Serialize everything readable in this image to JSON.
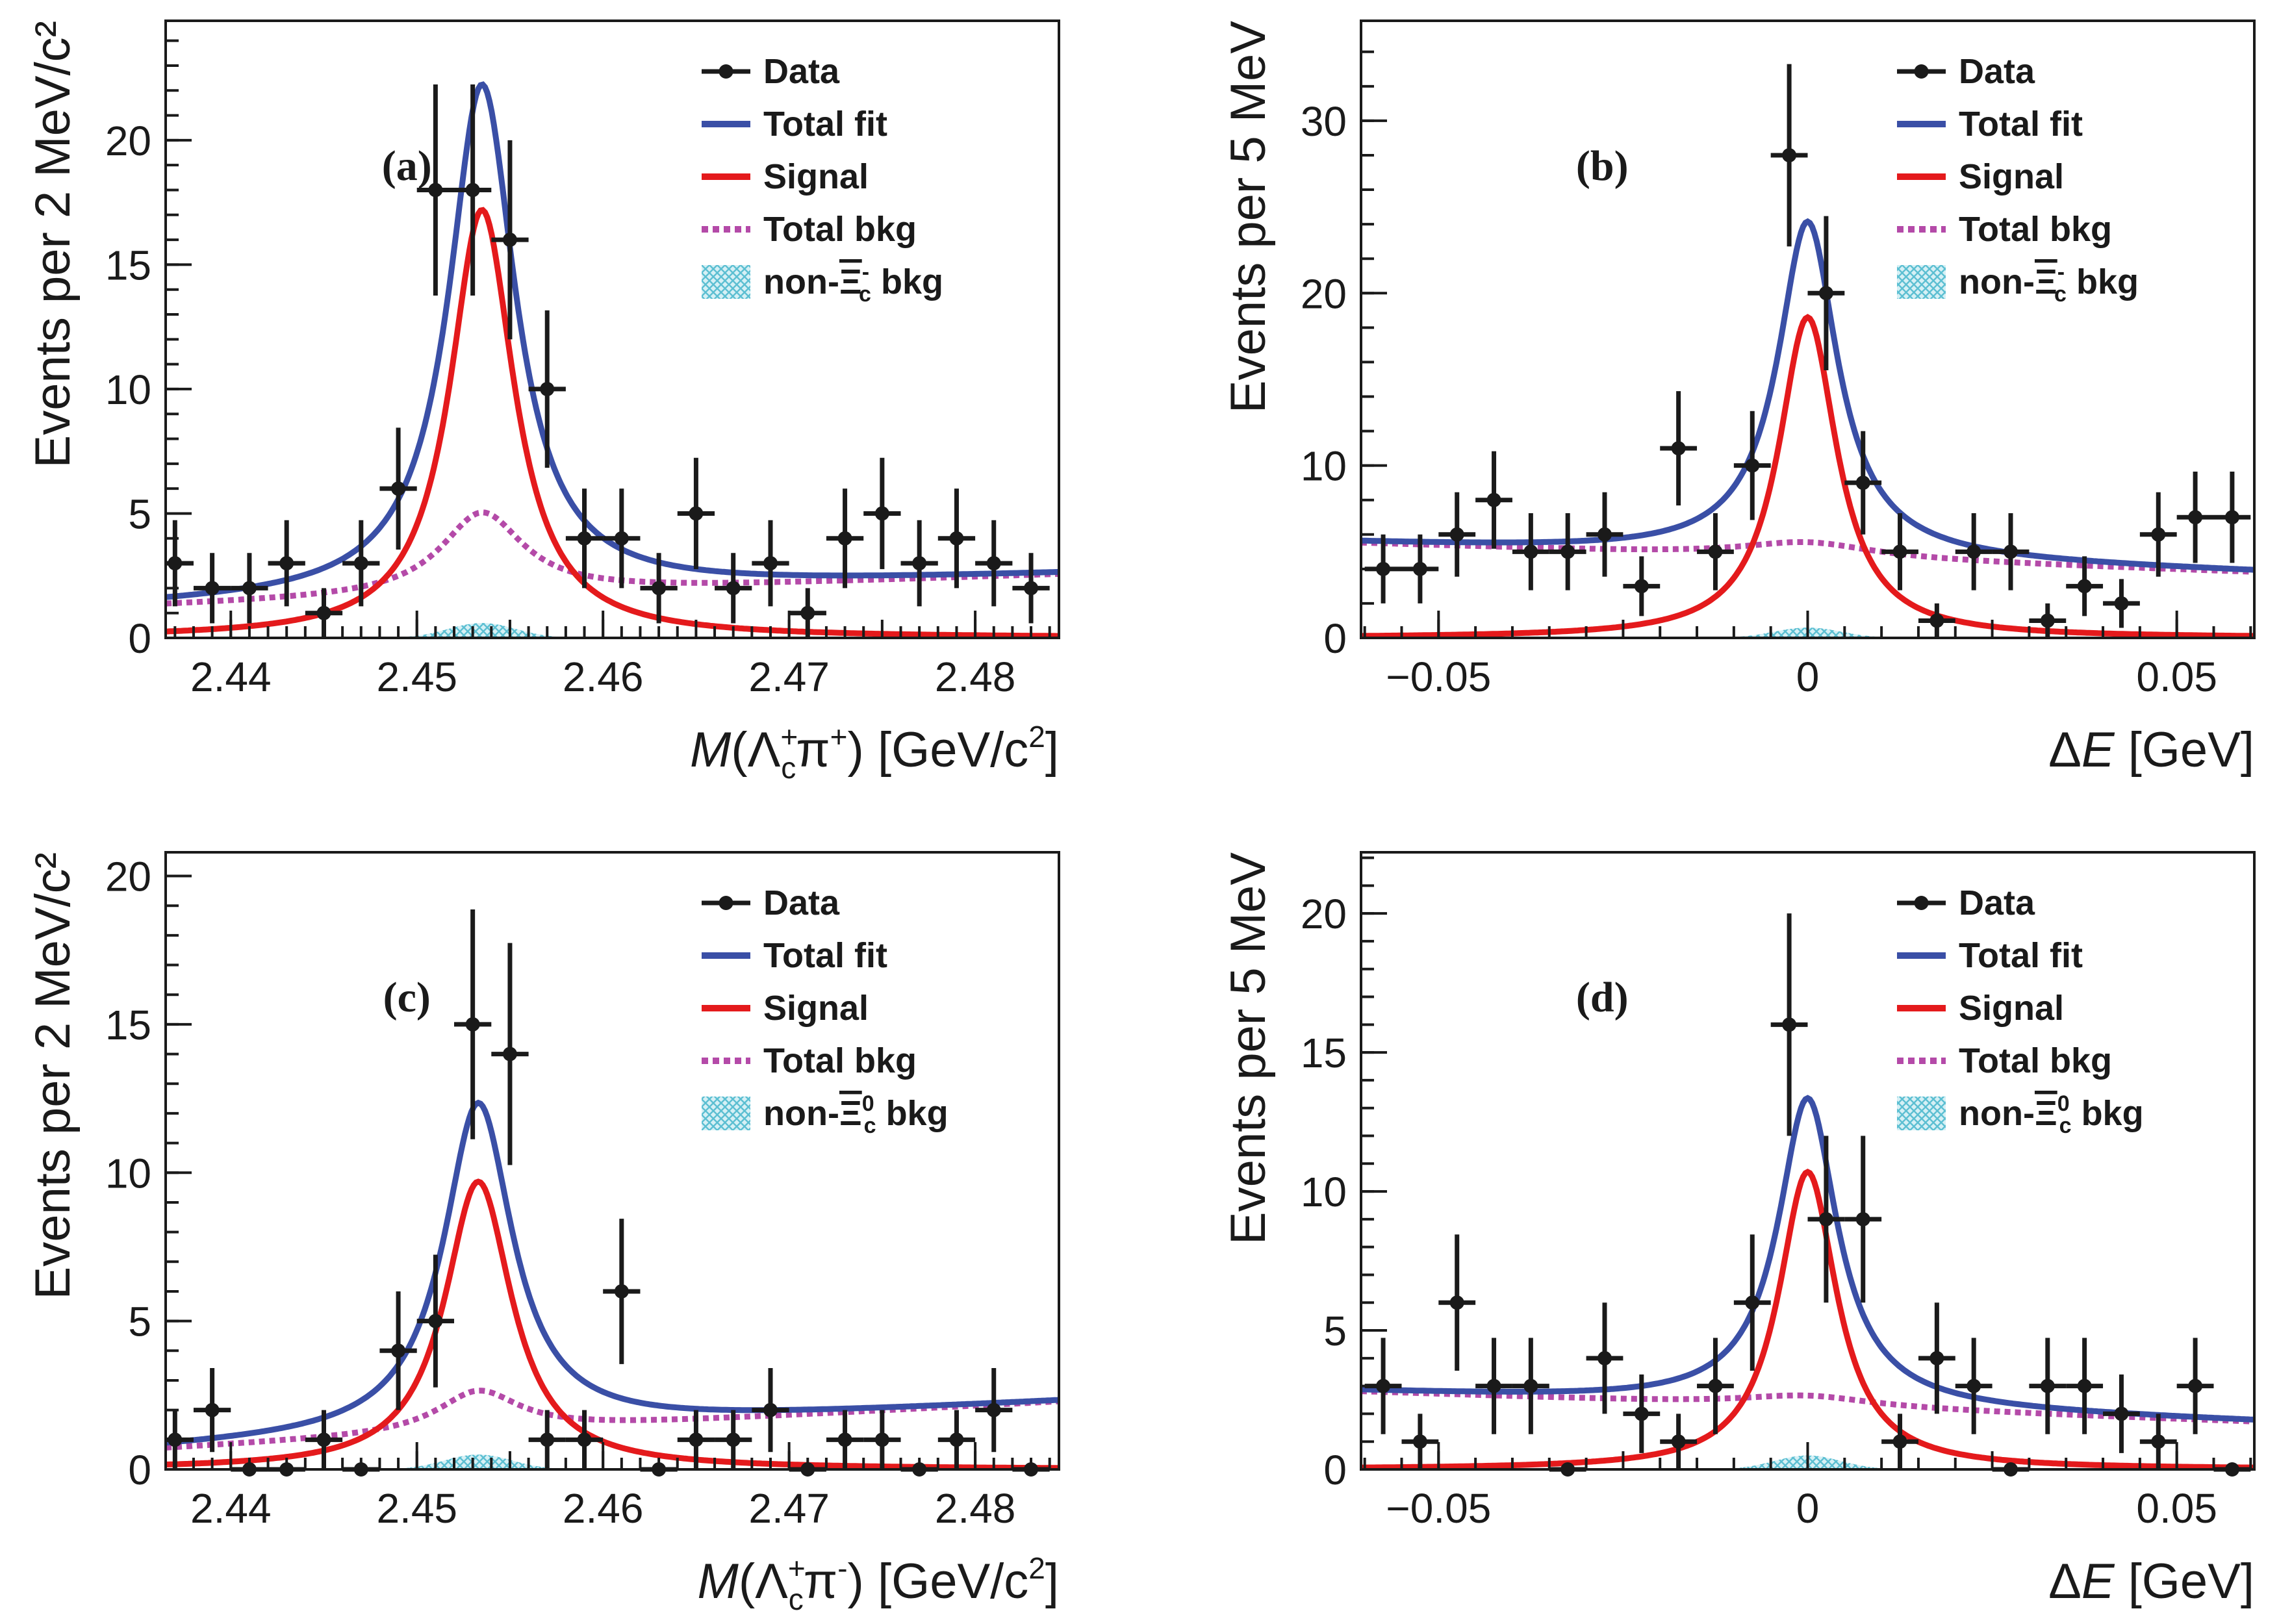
{
  "colors": {
    "data": "#1a1a1a",
    "total_fit": "#3a4fa6",
    "signal": "#e41a1c",
    "total_bkg": "#b44aa8",
    "non_xic_bkg": "#6cc8d8"
  },
  "chart_data": [
    {
      "type": "line",
      "panel_tag": "(a)",
      "xlabel": {
        "var": "M",
        "particles": "Λ",
        "sub": "c",
        "sup": "+",
        "pion": "π",
        "pion_sup": "+",
        "unit": " [GeV/c",
        "unit_sup": "2",
        "unit_close": "]"
      },
      "ylabel": "Events per 2 MeV/c²",
      "xlim": [
        2.4365,
        2.4845
      ],
      "ylim": [
        0,
        24.8
      ],
      "xticks": [
        2.44,
        2.45,
        2.46,
        2.47,
        2.48
      ],
      "xtick_labels": [
        "2.44",
        "2.45",
        "2.46",
        "2.47",
        "2.48"
      ],
      "yticks": [
        0,
        5,
        10,
        15,
        20
      ],
      "ytick_labels": [
        "0",
        "5",
        "10",
        "15",
        "20"
      ],
      "legend_position": "top-right",
      "legend": [
        "Data",
        "Total fit",
        "Signal",
        "Total bkg",
        "non-Ξc⁻ bkg"
      ],
      "legend_special": {
        "prefix": "non-",
        "base": "Ξ",
        "sub": "c",
        "sup": "-",
        "suffix": " bkg"
      },
      "grid": false,
      "data_points": {
        "x": [
          2.437,
          2.439,
          2.441,
          2.443,
          2.445,
          2.447,
          2.449,
          2.451,
          2.453,
          2.455,
          2.457,
          2.459,
          2.461,
          2.463,
          2.465,
          2.467,
          2.469,
          2.471,
          2.473,
          2.475,
          2.477,
          2.479,
          2.481,
          2.483
        ],
        "y": [
          3,
          2,
          2,
          3,
          1,
          3,
          6,
          18,
          18,
          16,
          10,
          4,
          4,
          2,
          5,
          2,
          3,
          1,
          4,
          5,
          3,
          4,
          3,
          2
        ],
        "xerr": 0.001
      },
      "curves": {
        "peak_mass": 2.4535,
        "signal": {
          "amplitude": 17.2,
          "width": 0.0021
        },
        "bkg_linear": {
          "at_start": 1.3,
          "slope": 26
        },
        "bkg_peak": {
          "amplitude": 3.3,
          "width": 0.0027
        },
        "non_xic_bkg": {
          "amplitude": 0.6,
          "width": 0.0018
        }
      }
    },
    {
      "type": "line",
      "panel_tag": "(b)",
      "xlabel": {
        "var": "ΔE",
        "unit": " [GeV]"
      },
      "ylabel": "Events per 5 MeV",
      "xlim": [
        -0.0605,
        0.0605
      ],
      "ylim": [
        0,
        35.8
      ],
      "xticks": [
        -0.05,
        0,
        0.05
      ],
      "xtick_labels": [
        "−0.05",
        "0",
        "0.05"
      ],
      "yticks": [
        0,
        10,
        20,
        30
      ],
      "ytick_labels": [
        "0",
        "10",
        "20",
        "30"
      ],
      "legend_position": "top-right",
      "legend": [
        "Data",
        "Total fit",
        "Signal",
        "Total bkg",
        "non-Ξc⁻ bkg"
      ],
      "legend_special": {
        "prefix": "non-",
        "base": "Ξ",
        "sub": "c",
        "sup": "-",
        "suffix": " bkg"
      },
      "grid": false,
      "data_points": {
        "x": [
          -0.0575,
          -0.0525,
          -0.0475,
          -0.0425,
          -0.0375,
          -0.0325,
          -0.0275,
          -0.0225,
          -0.0175,
          -0.0125,
          -0.0075,
          -0.0025,
          0.0025,
          0.0075,
          0.0125,
          0.0175,
          0.0225,
          0.0275,
          0.0325,
          0.0375,
          0.0425,
          0.0475,
          0.0525,
          0.0575
        ],
        "y": [
          4,
          4,
          6,
          8,
          5,
          5,
          6,
          3,
          11,
          5,
          10,
          28,
          20,
          9,
          5,
          1,
          5,
          5,
          1,
          3,
          2,
          6,
          7,
          7
        ],
        "xerr": 0.0025
      },
      "curves": {
        "peak_mass": 0,
        "signal": {
          "amplitude": 18.6,
          "width": 0.0048
        },
        "bkg_linear": {
          "at_start": 5.5,
          "slope": -14
        },
        "bkg_peak": {
          "amplitude": 0.9,
          "width": 0.011
        },
        "non_xic_bkg": {
          "amplitude": 0.6,
          "width": 0.0045
        }
      }
    },
    {
      "type": "line",
      "panel_tag": "(c)",
      "xlabel": {
        "var": "M",
        "particles": "Λ",
        "sub": "c",
        "sup": "+",
        "pion": "π",
        "pion_sup": "-",
        "unit": " [GeV/c",
        "unit_sup": "2",
        "unit_close": "]"
      },
      "ylabel": "Events per 2 MeV/c²",
      "xlim": [
        2.4365,
        2.4845
      ],
      "ylim": [
        0,
        20.8
      ],
      "xticks": [
        2.44,
        2.45,
        2.46,
        2.47,
        2.48
      ],
      "xtick_labels": [
        "2.44",
        "2.45",
        "2.46",
        "2.47",
        "2.48"
      ],
      "yticks": [
        0,
        5,
        10,
        15,
        20
      ],
      "ytick_labels": [
        "0",
        "5",
        "10",
        "15",
        "20"
      ],
      "legend_position": "top-right",
      "legend": [
        "Data",
        "Total fit",
        "Signal",
        "Total bkg",
        "non-Ξc⁰ bkg"
      ],
      "legend_special": {
        "prefix": "non-",
        "base": "Ξ",
        "sub": "c",
        "sup": "0",
        "suffix": " bkg"
      },
      "grid": false,
      "data_points": {
        "x": [
          2.437,
          2.439,
          2.441,
          2.443,
          2.445,
          2.447,
          2.449,
          2.451,
          2.453,
          2.455,
          2.457,
          2.459,
          2.461,
          2.463,
          2.465,
          2.467,
          2.469,
          2.471,
          2.473,
          2.475,
          2.477,
          2.479,
          2.481,
          2.483
        ],
        "y": [
          1,
          2,
          0,
          0,
          1,
          0,
          4,
          5,
          15,
          14,
          1,
          1,
          6,
          0,
          1,
          1,
          2,
          0,
          1,
          1,
          0,
          1,
          2,
          0
        ],
        "xerr": 0.001
      },
      "curves": {
        "peak_mass": 2.4533,
        "signal": {
          "amplitude": 9.7,
          "width": 0.0022
        },
        "bkg_linear": {
          "at_start": 0.7,
          "slope": 33
        },
        "bkg_peak": {
          "amplitude": 1.4,
          "width": 0.0027
        },
        "non_xic_bkg": {
          "amplitude": 0.5,
          "width": 0.0018
        }
      }
    },
    {
      "type": "line",
      "panel_tag": "(d)",
      "xlabel": {
        "var": "ΔE",
        "unit": " [GeV]"
      },
      "ylabel": "Events per 5 MeV",
      "xlim": [
        -0.0605,
        0.0605
      ],
      "ylim": [
        0,
        22.2
      ],
      "xticks": [
        -0.05,
        0,
        0.05
      ],
      "xtick_labels": [
        "−0.05",
        "0",
        "0.05"
      ],
      "yticks": [
        0,
        5,
        10,
        15,
        20
      ],
      "ytick_labels": [
        "0",
        "5",
        "10",
        "15",
        "20"
      ],
      "legend_position": "top-right",
      "legend": [
        "Data",
        "Total fit",
        "Signal",
        "Total bkg",
        "non-Ξc⁰ bkg"
      ],
      "legend_special": {
        "prefix": "non-",
        "base": "Ξ",
        "sub": "c",
        "sup": "0",
        "suffix": " bkg"
      },
      "grid": false,
      "data_points": {
        "x": [
          -0.0575,
          -0.0525,
          -0.0475,
          -0.0425,
          -0.0375,
          -0.0325,
          -0.0275,
          -0.0225,
          -0.0175,
          -0.0125,
          -0.0075,
          -0.0025,
          0.0025,
          0.0075,
          0.0125,
          0.0175,
          0.0225,
          0.0275,
          0.0325,
          0.0375,
          0.0425,
          0.0475,
          0.0525,
          0.0575
        ],
        "y": [
          3,
          1,
          6,
          3,
          3,
          0,
          4,
          2,
          1,
          3,
          6,
          16,
          9,
          9,
          1,
          4,
          3,
          0,
          3,
          3,
          2,
          1,
          3,
          0
        ],
        "xerr": 0.0025
      },
      "curves": {
        "peak_mass": 0,
        "signal": {
          "amplitude": 10.7,
          "width": 0.0048
        },
        "bkg_linear": {
          "at_start": 2.8,
          "slope": -9
        },
        "bkg_peak": {
          "amplitude": 0.4,
          "width": 0.011
        },
        "non_xic_bkg": {
          "amplitude": 0.5,
          "width": 0.0045
        }
      }
    }
  ]
}
